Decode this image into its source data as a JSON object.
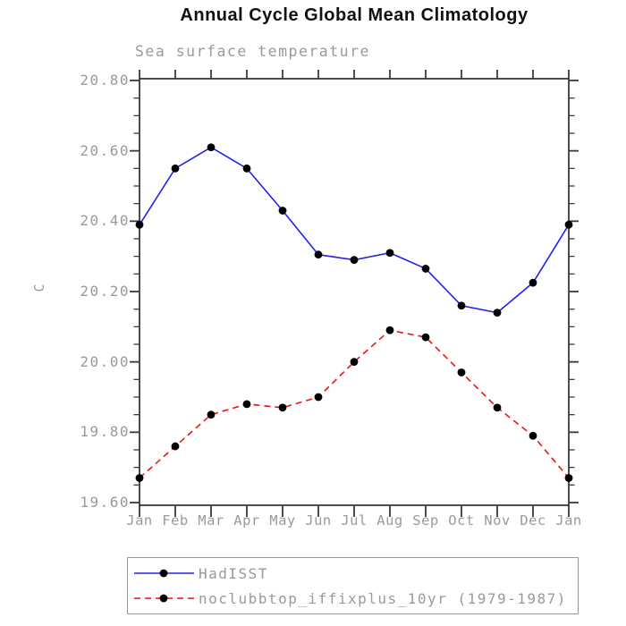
{
  "page": {
    "background": "#ffffff"
  },
  "chart_data": {
    "type": "line",
    "title": "Annual Cycle Global Mean Climatology",
    "subtitle": "Sea surface temperature",
    "ylabel": "C",
    "xlabel": "",
    "x_tick_labels": [
      "Jan",
      "Feb",
      "Mar",
      "Apr",
      "May",
      "Jun",
      "Jul",
      "Aug",
      "Sep",
      "Oct",
      "Nov",
      "Dec",
      "Jan"
    ],
    "ylim": [
      19.59,
      20.81
    ],
    "ytick_values": [
      19.6,
      19.8,
      20.0,
      20.2,
      20.4,
      20.6,
      20.8
    ],
    "ytick_labels": [
      "19.60",
      "19.80",
      "20.00",
      "20.20",
      "20.40",
      "20.60",
      "20.80"
    ],
    "minor_tick_step": 0.05,
    "grid": false,
    "tick_style": "outward-all-four-sides",
    "axis_color": "#3a3a3a",
    "label_color": "#9a9a9a",
    "marker_color": "#000000",
    "series": [
      {
        "name": "HadISST",
        "color": "#2222ee",
        "line_style": "solid",
        "marker": "filled-circle",
        "values": [
          20.39,
          20.55,
          20.61,
          20.55,
          20.43,
          20.305,
          20.29,
          20.31,
          20.265,
          20.16,
          20.14,
          20.225,
          20.39
        ]
      },
      {
        "name": "noclubbtop_iffixplus_10yr (1979-1987)",
        "color": "#ee1111",
        "line_style": "dashed",
        "marker": "filled-circle",
        "values": [
          19.67,
          19.76,
          19.85,
          19.88,
          19.87,
          19.9,
          20.0,
          20.09,
          20.07,
          19.97,
          19.87,
          19.79,
          19.67
        ]
      }
    ],
    "legend": {
      "position": "below-plot-left",
      "border_color": "#999999",
      "entries": [
        {
          "label": "HadISST",
          "line_color": "#2222ee",
          "line_style": "solid",
          "marker": "black-filled-circle"
        },
        {
          "label": "noclubbtop_iffixplus_10yr (1979-1987)",
          "line_color": "#ee1111",
          "line_style": "dashed",
          "marker": "black-filled-circle"
        }
      ]
    }
  }
}
